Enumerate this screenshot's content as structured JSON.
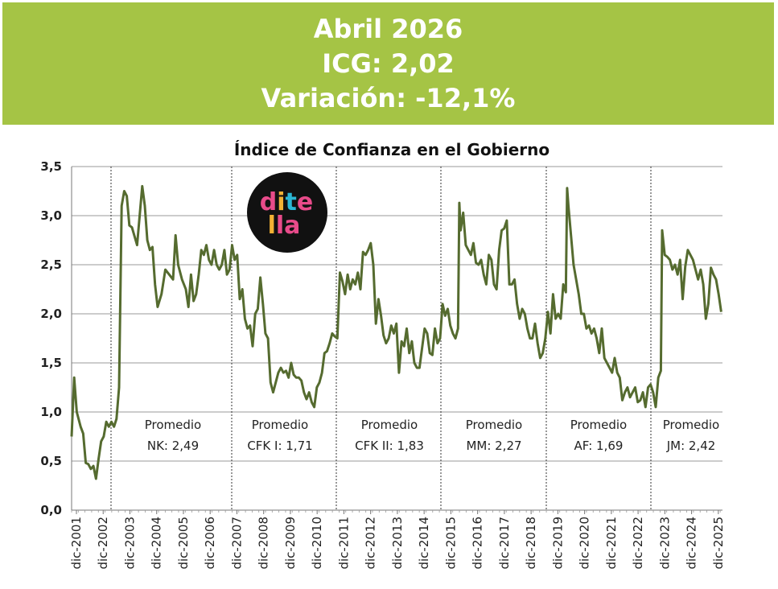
{
  "header": {
    "line1": "Abril 2026",
    "line2": "ICG: 2,02",
    "line3": "Variación: -12,1%",
    "background_color": "#a5c445"
  },
  "logo": {
    "text_top": "dite",
    "text_bottom": "lla",
    "icon": "ditella-logo"
  },
  "chart_data": {
    "type": "line",
    "title": "Índice de Confianza en el Gobierno",
    "xlabel": "",
    "ylabel": "",
    "ylim": [
      0,
      3.5
    ],
    "y_ticks": [
      "0,0",
      "0,5",
      "1,0",
      "1,5",
      "2,0",
      "2,5",
      "3,0",
      "3,5"
    ],
    "x_tick_labels": [
      "dic-2001",
      "dic-2002",
      "dic-2003",
      "dic-2004",
      "dic-2005",
      "dic-2006",
      "dic-2007",
      "dic-2008",
      "dic-2009",
      "dic-2010",
      "dic-2011",
      "dic-2012",
      "dic-2013",
      "dic-2014",
      "dic-2015",
      "dic-2016",
      "dic-2017",
      "dic-2018",
      "dic-2019",
      "dic-2020",
      "dic-2021",
      "dic-2022",
      "dic-2023",
      "dic-2024",
      "dic-2025"
    ],
    "grid": true,
    "line_color": "#556b2f",
    "period_dividers": [
      2003.33,
      2007.9,
      2011.9,
      2015.9,
      2019.9,
      2023.9
    ],
    "periods": [
      {
        "label": "Promedio",
        "value": "NK: 2,49"
      },
      {
        "label": "Promedio",
        "value": "CFK I: 1,71"
      },
      {
        "label": "Promedio",
        "value": "CFK II: 1,83"
      },
      {
        "label": "Promedio",
        "value": "MM: 2,27"
      },
      {
        "label": "Promedio",
        "value": "AF: 1,69"
      },
      {
        "label": "Promedio",
        "value": "JM: 2,42"
      }
    ],
    "series": [
      {
        "points": [
          [
            2001.95,
            0.75
          ],
          [
            2002.05,
            1.35
          ],
          [
            2002.15,
            1.0
          ],
          [
            2002.3,
            0.85
          ],
          [
            2002.4,
            0.78
          ],
          [
            2002.5,
            0.48
          ],
          [
            2002.6,
            0.47
          ],
          [
            2002.7,
            0.42
          ],
          [
            2002.8,
            0.45
          ],
          [
            2002.9,
            0.32
          ],
          [
            2003.0,
            0.52
          ],
          [
            2003.1,
            0.7
          ],
          [
            2003.2,
            0.75
          ],
          [
            2003.3,
            0.9
          ],
          [
            2003.4,
            0.85
          ],
          [
            2003.5,
            0.9
          ],
          [
            2003.6,
            0.85
          ],
          [
            2003.7,
            0.93
          ],
          [
            2003.8,
            1.25
          ],
          [
            2003.9,
            3.1
          ],
          [
            2004.0,
            3.25
          ],
          [
            2004.1,
            3.2
          ],
          [
            2004.2,
            2.9
          ],
          [
            2004.3,
            2.88
          ],
          [
            2004.5,
            2.7
          ],
          [
            2004.6,
            3.0
          ],
          [
            2004.7,
            3.3
          ],
          [
            2004.8,
            3.1
          ],
          [
            2004.9,
            2.75
          ],
          [
            2005.0,
            2.65
          ],
          [
            2005.1,
            2.68
          ],
          [
            2005.2,
            2.3
          ],
          [
            2005.3,
            2.07
          ],
          [
            2005.45,
            2.2
          ],
          [
            2005.6,
            2.45
          ],
          [
            2005.75,
            2.4
          ],
          [
            2005.9,
            2.35
          ],
          [
            2006.0,
            2.8
          ],
          [
            2006.1,
            2.5
          ],
          [
            2006.25,
            2.35
          ],
          [
            2006.4,
            2.25
          ],
          [
            2006.5,
            2.07
          ],
          [
            2006.6,
            2.4
          ],
          [
            2006.7,
            2.13
          ],
          [
            2006.8,
            2.2
          ],
          [
            2006.9,
            2.4
          ],
          [
            2007.0,
            2.65
          ],
          [
            2007.1,
            2.6
          ],
          [
            2007.2,
            2.7
          ],
          [
            2007.3,
            2.55
          ],
          [
            2007.4,
            2.5
          ],
          [
            2007.5,
            2.65
          ],
          [
            2007.6,
            2.5
          ],
          [
            2007.7,
            2.45
          ],
          [
            2007.8,
            2.5
          ],
          [
            2007.9,
            2.65
          ],
          [
            2008.0,
            2.4
          ],
          [
            2008.1,
            2.45
          ],
          [
            2008.2,
            2.7
          ],
          [
            2008.3,
            2.55
          ],
          [
            2008.4,
            2.6
          ],
          [
            2008.5,
            2.15
          ],
          [
            2008.6,
            2.25
          ],
          [
            2008.7,
            1.95
          ],
          [
            2008.8,
            1.85
          ],
          [
            2008.9,
            1.88
          ],
          [
            2009.0,
            1.67
          ],
          [
            2009.1,
            2.0
          ],
          [
            2009.2,
            2.05
          ],
          [
            2009.3,
            2.37
          ],
          [
            2009.4,
            2.1
          ],
          [
            2009.5,
            1.8
          ],
          [
            2009.6,
            1.75
          ],
          [
            2009.7,
            1.3
          ],
          [
            2009.8,
            1.2
          ],
          [
            2009.9,
            1.3
          ],
          [
            2010.0,
            1.4
          ],
          [
            2010.1,
            1.45
          ],
          [
            2010.2,
            1.4
          ],
          [
            2010.3,
            1.42
          ],
          [
            2010.4,
            1.35
          ],
          [
            2010.5,
            1.5
          ],
          [
            2010.6,
            1.38
          ],
          [
            2010.7,
            1.35
          ],
          [
            2010.8,
            1.35
          ],
          [
            2010.9,
            1.32
          ],
          [
            2011.0,
            1.2
          ],
          [
            2011.1,
            1.13
          ],
          [
            2011.2,
            1.2
          ],
          [
            2011.3,
            1.1
          ],
          [
            2011.4,
            1.05
          ],
          [
            2011.5,
            1.25
          ],
          [
            2011.6,
            1.3
          ],
          [
            2011.7,
            1.4
          ],
          [
            2011.8,
            1.6
          ],
          [
            2011.9,
            1.62
          ],
          [
            2012.0,
            1.7
          ],
          [
            2012.1,
            1.8
          ],
          [
            2012.2,
            1.77
          ],
          [
            2012.3,
            1.75
          ],
          [
            2012.4,
            2.42
          ],
          [
            2012.5,
            2.33
          ],
          [
            2012.6,
            2.2
          ],
          [
            2012.7,
            2.4
          ],
          [
            2012.8,
            2.25
          ],
          [
            2012.9,
            2.35
          ],
          [
            2013.0,
            2.3
          ],
          [
            2013.1,
            2.42
          ],
          [
            2013.2,
            2.25
          ],
          [
            2013.3,
            2.63
          ],
          [
            2013.4,
            2.6
          ],
          [
            2013.5,
            2.65
          ],
          [
            2013.6,
            2.72
          ],
          [
            2013.7,
            2.5
          ],
          [
            2013.8,
            1.9
          ],
          [
            2013.9,
            2.15
          ],
          [
            2014.0,
            1.98
          ],
          [
            2014.1,
            1.78
          ],
          [
            2014.2,
            1.7
          ],
          [
            2014.3,
            1.75
          ],
          [
            2014.4,
            1.88
          ],
          [
            2014.5,
            1.8
          ],
          [
            2014.6,
            1.9
          ],
          [
            2014.7,
            1.4
          ],
          [
            2014.8,
            1.72
          ],
          [
            2014.9,
            1.67
          ],
          [
            2015.0,
            1.85
          ],
          [
            2015.1,
            1.6
          ],
          [
            2015.2,
            1.72
          ],
          [
            2015.3,
            1.5
          ],
          [
            2015.4,
            1.45
          ],
          [
            2015.5,
            1.45
          ],
          [
            2015.6,
            1.65
          ],
          [
            2015.7,
            1.85
          ],
          [
            2015.8,
            1.8
          ],
          [
            2015.9,
            1.6
          ],
          [
            2016.0,
            1.58
          ],
          [
            2016.1,
            1.85
          ],
          [
            2016.2,
            1.7
          ],
          [
            2016.3,
            1.75
          ],
          [
            2016.4,
            2.1
          ],
          [
            2016.5,
            1.98
          ],
          [
            2016.6,
            2.05
          ],
          [
            2016.7,
            1.88
          ],
          [
            2016.8,
            1.8
          ],
          [
            2016.9,
            1.75
          ],
          [
            2017.0,
            1.85
          ],
          [
            2017.05,
            3.13
          ],
          [
            2017.1,
            2.85
          ],
          [
            2017.2,
            3.03
          ],
          [
            2017.3,
            2.7
          ],
          [
            2017.4,
            2.65
          ],
          [
            2017.5,
            2.6
          ],
          [
            2017.6,
            2.72
          ],
          [
            2017.7,
            2.52
          ],
          [
            2017.8,
            2.5
          ],
          [
            2017.9,
            2.55
          ],
          [
            2018.0,
            2.4
          ],
          [
            2018.1,
            2.3
          ],
          [
            2018.2,
            2.6
          ],
          [
            2018.3,
            2.55
          ],
          [
            2018.4,
            2.3
          ],
          [
            2018.5,
            2.25
          ],
          [
            2018.6,
            2.65
          ],
          [
            2018.7,
            2.85
          ],
          [
            2018.8,
            2.87
          ],
          [
            2018.9,
            2.95
          ],
          [
            2019.0,
            2.3
          ],
          [
            2019.1,
            2.3
          ],
          [
            2019.2,
            2.35
          ],
          [
            2019.3,
            2.1
          ],
          [
            2019.4,
            1.95
          ],
          [
            2019.5,
            2.05
          ],
          [
            2019.6,
            2.0
          ],
          [
            2019.7,
            1.85
          ],
          [
            2019.8,
            1.75
          ],
          [
            2019.9,
            1.75
          ],
          [
            2020.0,
            1.9
          ],
          [
            2020.1,
            1.7
          ],
          [
            2020.2,
            1.55
          ],
          [
            2020.3,
            1.6
          ],
          [
            2020.4,
            1.75
          ],
          [
            2020.5,
            2.02
          ],
          [
            2020.6,
            1.8
          ],
          [
            2020.7,
            2.2
          ],
          [
            2020.8,
            1.95
          ],
          [
            2020.9,
            2.0
          ],
          [
            2021.0,
            1.95
          ],
          [
            2021.1,
            2.3
          ],
          [
            2021.2,
            2.22
          ],
          [
            2021.25,
            3.28
          ],
          [
            2021.3,
            3.1
          ],
          [
            2021.4,
            2.8
          ],
          [
            2021.5,
            2.5
          ],
          [
            2021.6,
            2.35
          ],
          [
            2021.7,
            2.2
          ],
          [
            2021.8,
            2.0
          ],
          [
            2021.9,
            2.0
          ],
          [
            2022.0,
            1.85
          ],
          [
            2022.1,
            1.88
          ],
          [
            2022.2,
            1.8
          ],
          [
            2022.3,
            1.85
          ],
          [
            2022.4,
            1.75
          ],
          [
            2022.5,
            1.6
          ],
          [
            2022.6,
            1.85
          ],
          [
            2022.7,
            1.55
          ],
          [
            2022.8,
            1.5
          ],
          [
            2022.9,
            1.45
          ],
          [
            2023.0,
            1.4
          ],
          [
            2023.1,
            1.55
          ],
          [
            2023.2,
            1.4
          ],
          [
            2023.3,
            1.35
          ],
          [
            2023.4,
            1.12
          ],
          [
            2023.5,
            1.2
          ],
          [
            2023.6,
            1.25
          ],
          [
            2023.7,
            1.15
          ],
          [
            2023.8,
            1.2
          ],
          [
            2023.9,
            1.25
          ],
          [
            2024.0,
            1.1
          ],
          [
            2024.1,
            1.12
          ],
          [
            2024.2,
            1.2
          ],
          [
            2024.3,
            1.05
          ],
          [
            2024.4,
            1.25
          ],
          [
            2024.5,
            1.28
          ],
          [
            2024.6,
            1.2
          ],
          [
            2024.7,
            1.05
          ],
          [
            2024.8,
            1.35
          ],
          [
            2024.9,
            1.42
          ],
          [
            2024.95,
            2.85
          ],
          [
            2025.05,
            2.6
          ],
          [
            2025.15,
            2.58
          ],
          [
            2025.25,
            2.55
          ],
          [
            2025.35,
            2.45
          ],
          [
            2025.45,
            2.5
          ],
          [
            2025.55,
            2.4
          ],
          [
            2025.65,
            2.55
          ],
          [
            2025.75,
            2.15
          ],
          [
            2025.85,
            2.48
          ],
          [
            2025.95,
            2.65
          ],
          [
            2026.05,
            2.6
          ],
          [
            2026.15,
            2.55
          ],
          [
            2026.25,
            2.45
          ],
          [
            2026.35,
            2.35
          ],
          [
            2026.45,
            2.45
          ],
          [
            2026.55,
            2.3
          ],
          [
            2026.65,
            1.95
          ],
          [
            2026.75,
            2.1
          ],
          [
            2026.85,
            2.47
          ],
          [
            2026.95,
            2.4
          ],
          [
            2027.05,
            2.35
          ],
          [
            2027.15,
            2.2
          ],
          [
            2027.25,
            2.02
          ]
        ]
      }
    ]
  }
}
